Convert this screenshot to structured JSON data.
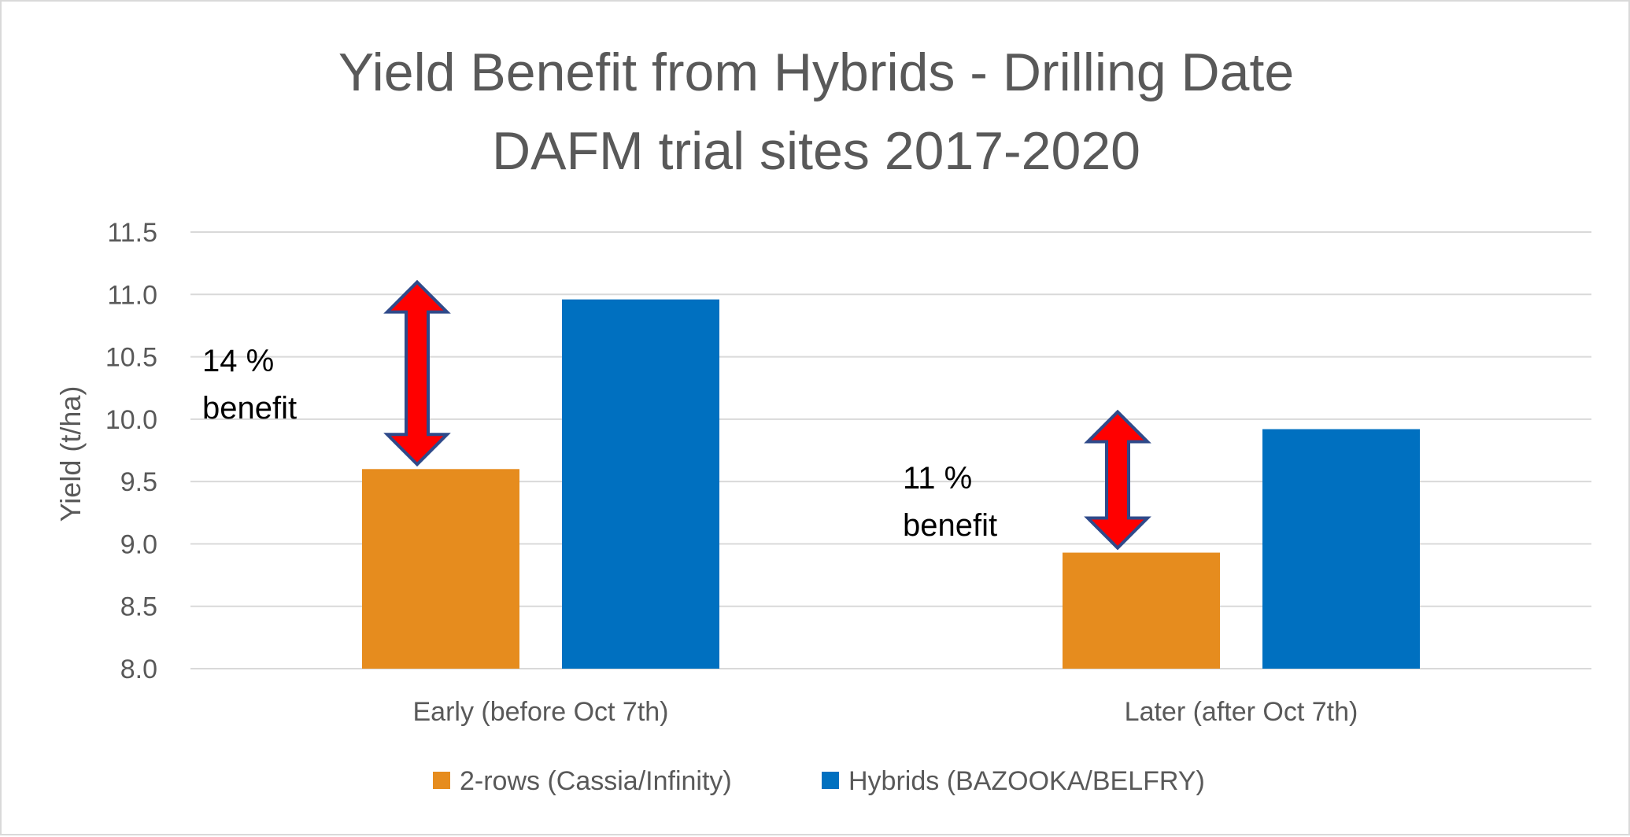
{
  "chart_data": {
    "type": "bar",
    "title": "Yield Benefit from Hybrids - Drilling Date",
    "subtitle": "DAFM trial sites 2017-2020",
    "xlabel": "",
    "ylabel": "Yield (t/ha)",
    "ylim": [
      8.0,
      11.5
    ],
    "yticks": [
      8.0,
      8.5,
      9.0,
      9.5,
      10.0,
      10.5,
      11.0,
      11.5
    ],
    "ytick_labels": [
      "8.0",
      "8.5",
      "9.0",
      "9.5",
      "10.0",
      "10.5",
      "11.0",
      "11.5"
    ],
    "grid": true,
    "legend_position": "bottom",
    "categories": [
      "Early (before Oct 7th)",
      "Later (after Oct 7th)"
    ],
    "series": [
      {
        "name": "2-rows (Cassia/Infinity)",
        "values": [
          9.6,
          8.93
        ],
        "color": "#E68C1E"
      },
      {
        "name": "Hybrids (BAZOOKA/BELFRY)",
        "values": [
          10.96,
          9.92
        ],
        "color": "#0070C0"
      }
    ],
    "annotations": [
      {
        "line1": "14 %",
        "line2": "benefit",
        "category_index": 0
      },
      {
        "line1": "11 %",
        "line2": "benefit",
        "category_index": 1
      }
    ],
    "arrow_colors": {
      "fill": "#FF0000",
      "stroke": "#2F4A8A"
    }
  }
}
